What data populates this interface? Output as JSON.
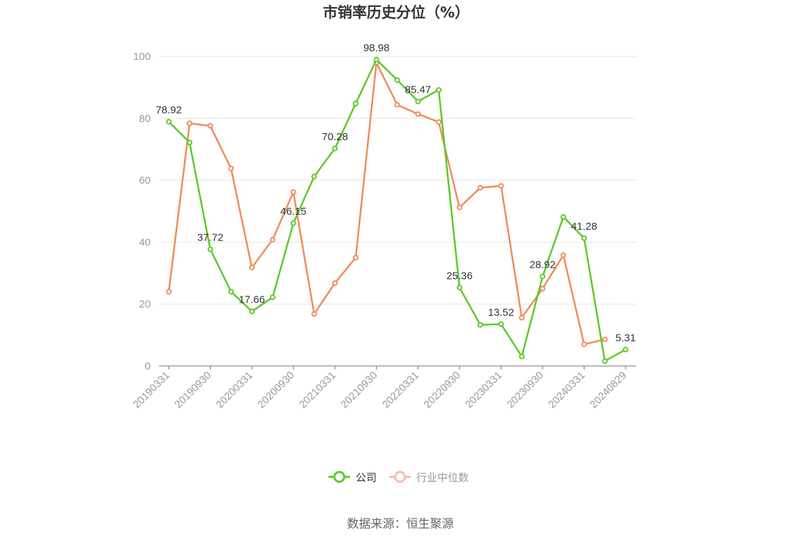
{
  "chart_data": {
    "type": "line",
    "title": "市销率历史分位（%）",
    "x": [
      "20190331",
      "20190630",
      "20190930",
      "20191231",
      "20200331",
      "20200630",
      "20200930",
      "20201231",
      "20210331",
      "20210630",
      "20210930",
      "20211231",
      "20220331",
      "20220630",
      "20220930",
      "20221231",
      "20230331",
      "20230630",
      "20230930",
      "20231231",
      "20240331",
      "20240630",
      "20240829"
    ],
    "x_tick_labels": [
      "20190331",
      "20190930",
      "20200331",
      "20200930",
      "20210331",
      "20210930",
      "20220331",
      "20220930",
      "20230331",
      "20230930",
      "20240331",
      "20240829"
    ],
    "ylim": [
      0,
      100
    ],
    "y_ticks": [
      0,
      20,
      40,
      60,
      80,
      100
    ],
    "grid": true,
    "legend_position": "bottom",
    "series": [
      {
        "name": "公司",
        "color": "#5cc92a",
        "values": [
          78.92,
          72.2,
          37.72,
          24.0,
          17.66,
          22.2,
          46.15,
          61.2,
          70.28,
          84.8,
          98.98,
          92.4,
          85.47,
          89.2,
          25.36,
          13.3,
          13.52,
          3.1,
          28.92,
          48.2,
          41.28,
          1.6,
          5.31
        ],
        "labels": {
          "0": "78.92",
          "2": "37.72",
          "4": "17.66",
          "6": "46.15",
          "8": "70.28",
          "10": "98.98",
          "12": "85.47",
          "14": "25.36",
          "16": "13.52",
          "18": "28.92",
          "20": "41.28",
          "22": "5.31"
        }
      },
      {
        "name": "行业中位数",
        "color": "#f28b58",
        "values": [
          24.0,
          78.4,
          77.6,
          63.8,
          31.8,
          40.8,
          56.2,
          16.8,
          26.8,
          35.0,
          98.0,
          84.4,
          81.4,
          78.8,
          51.2,
          57.6,
          58.2,
          15.6,
          25.0,
          35.8,
          7.0,
          8.6,
          null
        ]
      }
    ],
    "source": "数据来源：恒生聚源"
  }
}
